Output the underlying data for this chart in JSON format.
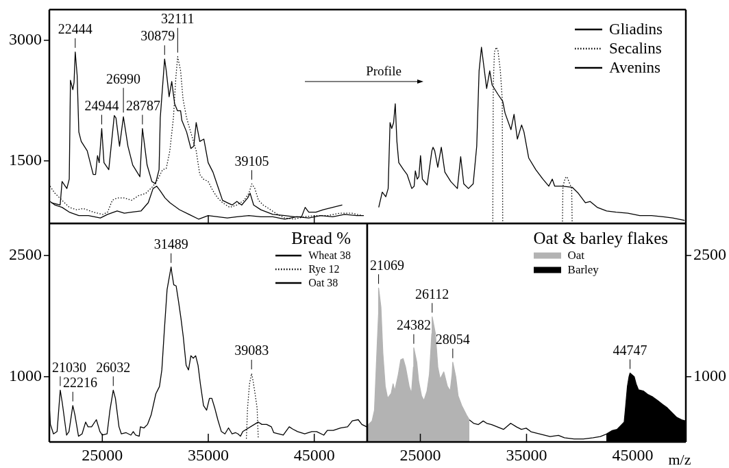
{
  "chart_data": [
    {
      "type": "line",
      "marker": "none",
      "legend": "top right",
      "tick_labels": "y",
      "xlim": [
        20000,
        50000
      ],
      "xticks": [
        {
          "value": 35000,
          "label": null
        },
        {
          "value": 45000,
          "label": null
        }
      ],
      "ylim": [
        725,
        3380
      ],
      "yticks": [
        1500,
        3000
      ],
      "annotations": [
        "Profile",
        {
          "text": "22444",
          "x": 22444,
          "y": 2854
        },
        {
          "text": "24944",
          "x": 24944,
          "y": 1903
        },
        {
          "text": "26990",
          "x": 26990,
          "y": 2050
        },
        {
          "text": "28787",
          "x": 28787,
          "y": 1903
        },
        {
          "text": "30879",
          "x": 30879,
          "y": 2766
        },
        {
          "text": "32111",
          "x": 32111,
          "y": 2795
        },
        {
          "text": "39105",
          "x": 39105,
          "y": 1216
        }
      ],
      "series": [
        {
          "name": "Gliadins",
          "color": "#000000",
          "line_style": "solid",
          "x": [
            20185,
            21021,
            21202,
            21654,
            21880,
            21993,
            22219,
            22332,
            22444,
            22626,
            22784,
            23010,
            23575,
            24140,
            24366,
            24547,
            24705,
            24944,
            25157,
            25609,
            26129,
            26287,
            26626,
            26990,
            27417,
            27869,
            28547,
            28787,
            29225,
            29677,
            30016,
            30355,
            30468,
            30879,
            31033,
            31304,
            31553,
            31824,
            32095,
            32389,
            32502,
            32954,
            33361,
            33632,
            33858,
            34197,
            34581,
            34988,
            35440,
            35892,
            36344,
            36796,
            37248,
            37700,
            38152,
            38717,
            38943,
            39282,
            39960,
            41090,
            42220,
            43124,
            43802,
            44141,
            44480,
            45158,
            45836,
            46740,
            47644
          ],
          "values": [
            982,
            953,
            1245,
            1158,
            1275,
            2503,
            2386,
            2474,
            2854,
            2561,
            1860,
            1743,
            1626,
            1333,
            1333,
            1567,
            1479,
            1903,
            1479,
            1392,
            2064,
            2035,
            1684,
            2050,
            1684,
            1450,
            1304,
            1903,
            1450,
            1245,
            1216,
            1392,
            2035,
            2766,
            2620,
            2298,
            2488,
            2210,
            2123,
            2123,
            2006,
            1860,
            1655,
            1684,
            1977,
            1743,
            1772,
            1479,
            1362,
            1187,
            1011,
            982,
            953,
            997,
            953,
            1041,
            1100,
            953,
            894,
            836,
            822,
            807,
            807,
            924,
            865,
            865,
            894,
            924,
            953
          ]
        },
        {
          "name": "Secalins",
          "color": "#000000",
          "line_style": "dotted",
          "x": [
            20072,
            20524,
            21202,
            21880,
            22558,
            23236,
            24140,
            25044,
            25496,
            25948,
            26400,
            27078,
            27756,
            28434,
            29112,
            29790,
            30242,
            30694,
            31033,
            31372,
            31711,
            31937,
            32111,
            32389,
            32615,
            32954,
            33406,
            33858,
            34197,
            34536,
            34988,
            35440,
            35892,
            36344,
            37022,
            37700,
            38378,
            38830,
            39105,
            39395,
            39734,
            40186,
            40864,
            41542,
            42220,
            43124,
            44028,
            45158,
            46288,
            47418,
            48548,
            49565
          ],
          "values": [
            1187,
            1099,
            1012,
            924,
            895,
            909,
            865,
            836,
            865,
            1012,
            1041,
            1041,
            1012,
            1070,
            1099,
            1187,
            1275,
            1392,
            1406,
            1626,
            2035,
            2532,
            2795,
            2620,
            2269,
            2035,
            1830,
            1626,
            1333,
            1275,
            1245,
            1129,
            1041,
            982,
            924,
            953,
            1012,
            1099,
            1216,
            1158,
            1012,
            953,
            895,
            836,
            792,
            778,
            807,
            822,
            822,
            851,
            851,
            822
          ]
        },
        {
          "name": "Avenins",
          "color": "#000000",
          "line_style": "solid",
          "x": [
            20072,
            20524,
            21202,
            21880,
            22784,
            23688,
            24818,
            25496,
            26400,
            27078,
            27756,
            28660,
            29338,
            29790,
            30129,
            30468,
            30920,
            31372,
            32276,
            33180,
            34084,
            34988,
            35892,
            36796,
            37700,
            38830,
            39960,
            41090,
            42220,
            43350,
            44480,
            45610,
            46740,
            47870,
            49000,
            49678
          ],
          "values": [
            997,
            953,
            924,
            865,
            822,
            822,
            792,
            836,
            880,
            851,
            865,
            880,
            982,
            1158,
            1187,
            1128,
            1041,
            982,
            895,
            836,
            778,
            822,
            807,
            792,
            807,
            822,
            807,
            807,
            778,
            807,
            792,
            822,
            807,
            836,
            822,
            822
          ]
        }
      ]
    },
    {
      "type": "line",
      "marker": "none",
      "tick_labels": false,
      "xlim": [
        20000,
        50000
      ],
      "ylim": [
        725,
        3380
      ],
      "series": [
        {
          "color": "#000000",
          "line_style": "solid",
          "x": [
            21081,
            21414,
            21748,
            21970,
            22148,
            22304,
            22482,
            22638,
            22793,
            22971,
            23416,
            23750,
            24194,
            24417,
            24528,
            24706,
            24862,
            25017,
            25195,
            25640,
            26085,
            26196,
            26352,
            26641,
            26974,
            27308,
            27864,
            28487,
            28798,
            29087,
            29532,
            29977,
            30310,
            30533,
            30755,
            30978,
            31244,
            31534,
            31756,
            32312,
            32757,
            32979,
            33535,
            33824,
            34136,
            34536,
            34758,
            35203,
            35870,
            36538,
            37094,
            37427,
            37650,
            38317,
            39318,
            39874,
            40541,
            40986,
            41653,
            42542,
            43432,
            44544,
            45656,
            46768,
            47880,
            48770,
            49882
          ],
          "values": [
            924,
            1114,
            1056,
            1158,
            1976,
            1903,
            1976,
            2210,
            1743,
            1479,
            1392,
            1333,
            1158,
            1187,
            1377,
            1275,
            1304,
            1567,
            1275,
            1202,
            1626,
            1670,
            1626,
            1421,
            1670,
            1362,
            1245,
            1158,
            1553,
            1216,
            1158,
            1216,
            1684,
            2620,
            2912,
            2678,
            2400,
            2620,
            2444,
            2327,
            2240,
            2094,
            1889,
            2079,
            1772,
            1947,
            1860,
            1538,
            1392,
            1275,
            1187,
            1275,
            1187,
            1187,
            1172,
            1099,
            982,
            997,
            924,
            880,
            865,
            851,
            822,
            822,
            807,
            792,
            763
          ]
        },
        {
          "color": "#000000",
          "line_style": "dotted",
          "x": [
            31823,
            31867,
            31978,
            32156,
            32312,
            32534,
            32712,
            32757,
            35500,
            38384,
            38428,
            38650,
            38806,
            38984,
            39251,
            39295
          ],
          "values": [
            748,
            2444,
            2854,
            2912,
            2868,
            2620,
            2269,
            748,
            null,
            748,
            1187,
            1289,
            1304,
            1245,
            1158,
            748
          ]
        }
      ]
    },
    {
      "type": "line",
      "marker": "none",
      "legend": "top right",
      "legend_title": "Bread %",
      "xlim": [
        20000,
        50000
      ],
      "xticks": [
        25000,
        35000,
        45000
      ],
      "ylim": [
        190,
        2900
      ],
      "yticks": [
        1000,
        2500
      ],
      "annotations": [
        {
          "text": "31489",
          "x": 31489,
          "y": 2359
        },
        {
          "text": "21030",
          "x": 21030,
          "y": 833
        },
        {
          "text": "22216",
          "x": 22216,
          "y": 642
        },
        {
          "text": "26032",
          "x": 26032,
          "y": 833
        },
        {
          "text": "39083",
          "x": 39083,
          "y": 1039
        }
      ],
      "series": [
        {
          "name": "Wheat 38",
          "color": "#000000",
          "line_style": "solid",
          "x": [
            20011,
            20101,
            20393,
            20731,
            21030,
            21225,
            21629,
            21854,
            22216,
            22416,
            22753,
            23090,
            23427,
            23652,
            23989,
            24438,
            24775,
            25000,
            25449,
            25719,
            26032,
            26236,
            26573,
            26797,
            27247,
            27696,
            27921,
            28146,
            28483,
            28595,
            28932,
            29269,
            29606,
            30056,
            30393,
            30617,
            30842,
            31112,
            31489,
            31561,
            31741,
            31966,
            32190,
            32415,
            32640,
            32909,
            33134,
            33359,
            33584,
            33809,
            34033,
            34258,
            34550,
            34842,
            35111,
            35336,
            35606,
            35898,
            36235,
            36572,
            36909,
            37246,
            37583,
            37808,
            38033,
            38258,
            39718,
            40055,
            40504,
            40953,
            41178,
            41627,
            42077,
            42638,
            42976,
            43425,
            44099,
            44773,
            45223,
            45897,
            46234,
            46796,
            47470,
            48144,
            48593,
            49155,
            49490,
            49942
          ],
          "values": [
            613,
            408,
            290,
            319,
            833,
            672,
            275,
            319,
            642,
            525,
            261,
            290,
            437,
            378,
            378,
            466,
            319,
            275,
            290,
            584,
            833,
            730,
            378,
            290,
            305,
            275,
            319,
            275,
            261,
            378,
            364,
            408,
            525,
            789,
            877,
            1083,
            1552,
            2080,
            2359,
            2286,
            2139,
            2125,
            1934,
            1728,
            1494,
            1141,
            1083,
            1259,
            1229,
            1259,
            1141,
            906,
            642,
            584,
            730,
            730,
            613,
            466,
            319,
            290,
            364,
            290,
            305,
            290,
            261,
            319,
            437,
            408,
            408,
            378,
            305,
            290,
            275,
            378,
            349,
            319,
            290,
            319,
            319,
            275,
            334,
            334,
            364,
            378,
            452,
            466,
            408,
            378
          ]
        },
        {
          "name": "Rye 12",
          "color": "#000000",
          "line_style": "dotted",
          "x": [
            38594,
            38707,
            38886,
            39083,
            39201,
            39381,
            39606,
            39718
          ],
          "values": [
            231,
            613,
            906,
            1039,
            965,
            818,
            613,
            231
          ]
        },
        {
          "name": "Oat 38",
          "color": "#000000",
          "line_style": "solid"
        }
      ]
    },
    {
      "type": "line",
      "marker": "none",
      "legend": "top right",
      "legend_title": "Oat & barley flakes",
      "xlabel": "m/z",
      "xlim": [
        20000,
        50000
      ],
      "xticks": [
        25000,
        35000,
        45000
      ],
      "ylim": [
        190,
        2900
      ],
      "yticks": [
        1000,
        2500
      ],
      "annotations": [
        {
          "text": "21069",
          "x": 21069,
          "y": 2099
        },
        {
          "text": "26112",
          "x": 26112,
          "y": 1742
        },
        {
          "text": "24382",
          "x": 24382,
          "y": 1356
        },
        {
          "text": "28054",
          "x": 28054,
          "y": 1178
        },
        {
          "text": "44747",
          "x": 44747,
          "y": 1044
        }
      ],
      "series": [
        {
          "name": "Oat",
          "type": "area",
          "color": "#b3b3b3",
          "x": [
            20005,
            20118,
            20456,
            20681,
            20906,
            21063,
            21069,
            21288,
            21468,
            21693,
            21918,
            22256,
            22436,
            22593,
            22931,
            23156,
            23381,
            23606,
            23943,
            24168,
            24350,
            24382,
            24663,
            24843,
            25113,
            25338,
            25631,
            25856,
            26081,
            26112,
            26418,
            26643,
            26868,
            27206,
            27543,
            27813,
            27993,
            28054,
            28331,
            28556,
            28893,
            29343,
            29613
          ],
          "values": [
            287,
            406,
            450,
            584,
            1297,
            1772,
            2099,
            1861,
            1297,
            881,
            732,
            792,
            911,
            822,
            1030,
            1208,
            1223,
            1119,
            881,
            792,
            1119,
            1356,
            1178,
            940,
            762,
            703,
            822,
            1030,
            1534,
            1742,
            1534,
            1119,
            970,
            1059,
            881,
            822,
            1030,
            1178,
            1000,
            762,
            643,
            525,
            465
          ]
        },
        {
          "type": "line",
          "color": "#000000",
          "x": [
            29613,
            30018,
            30468,
            30918,
            31256,
            31706,
            32268,
            32831,
            33506,
            34068,
            34518,
            34968,
            35418,
            36318,
            37218,
            38006,
            38568,
            39468,
            40368,
            41268,
            41943,
            42506
          ],
          "values": [
            465,
            421,
            406,
            450,
            421,
            406,
            376,
            346,
            421,
            376,
            346,
            361,
            317,
            287,
            257,
            272,
            242,
            228,
            228,
            242,
            257,
            287
          ]
        },
        {
          "name": "Barley",
          "type": "area",
          "color": "#000000",
          "x": [
            42506,
            43068,
            43518,
            43743,
            44193,
            44300,
            44500,
            44650,
            44747,
            45138,
            45318,
            45543,
            45993,
            46443,
            46893,
            47343,
            47793,
            48243,
            48693,
            49143,
            49593,
            50000
          ],
          "values": [
            287,
            332,
            346,
            376,
            436,
            584,
            881,
            1000,
            1044,
            1000,
            911,
            836,
            822,
            777,
            747,
            703,
            658,
            614,
            554,
            495,
            465,
            450
          ]
        }
      ]
    }
  ]
}
